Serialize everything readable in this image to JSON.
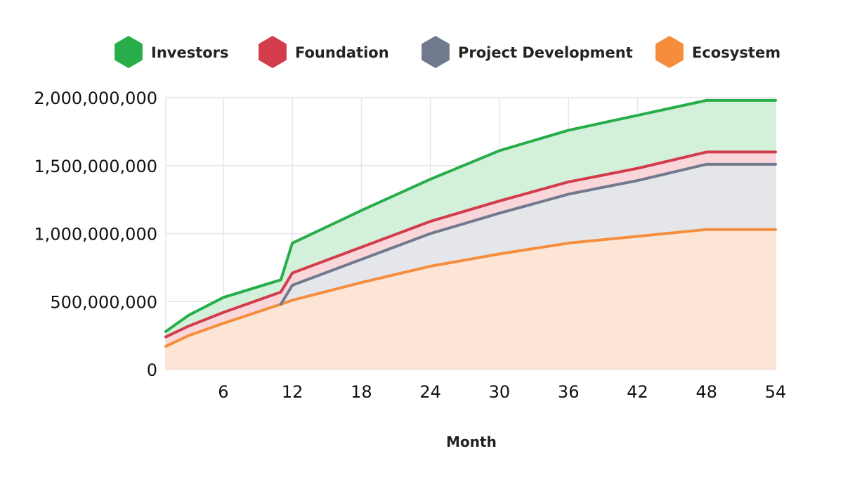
{
  "chart_data": {
    "type": "area",
    "stacked": true,
    "xlabel": "Month",
    "ylabel": "",
    "xlim": [
      1,
      54
    ],
    "ylim": [
      0,
      2000000000
    ],
    "x_ticks": [
      6,
      12,
      18,
      24,
      30,
      36,
      42,
      48,
      54
    ],
    "y_ticks": [
      0,
      500000000,
      1000000000,
      1500000000,
      2000000000
    ],
    "x_tick_labels": [
      "6",
      "12",
      "18",
      "24",
      "30",
      "36",
      "42",
      "48",
      "54"
    ],
    "y_tick_labels": [
      "0",
      "500,000,000",
      "1,000,000,000",
      "1,500,000,000",
      "2,000,000,000"
    ],
    "grid": true,
    "legend_position": "top",
    "x": [
      1,
      3,
      6,
      11,
      12,
      18,
      24,
      30,
      36,
      42,
      48,
      54
    ],
    "series": [
      {
        "name": "Ecosystem",
        "color": "#f58d3c",
        "fill": "#fde5d6",
        "values": [
          170000000,
          250000000,
          340000000,
          480000000,
          510000000,
          640000000,
          760000000,
          850000000,
          930000000,
          980000000,
          1030000000,
          1030000000
        ]
      },
      {
        "name": "Project Development",
        "color": "#717a8d",
        "fill": "#e4e6ea",
        "values": [
          0,
          0,
          0,
          0,
          110000000,
          170000000,
          240000000,
          300000000,
          360000000,
          410000000,
          480000000,
          480000000
        ]
      },
      {
        "name": "Foundation",
        "color": "#d23c4b",
        "fill": "#f8d6da",
        "values": [
          70000000,
          70000000,
          80000000,
          90000000,
          90000000,
          90000000,
          90000000,
          90000000,
          90000000,
          90000000,
          90000000,
          90000000
        ]
      },
      {
        "name": "Investors",
        "color": "#27ad4a",
        "fill": "#d3f0da",
        "values": [
          40000000,
          80000000,
          110000000,
          90000000,
          220000000,
          270000000,
          310000000,
          370000000,
          380000000,
          390000000,
          380000000,
          380000000
        ]
      }
    ],
    "legend_order": [
      "Investors",
      "Foundation",
      "Project Development",
      "Ecosystem"
    ]
  }
}
